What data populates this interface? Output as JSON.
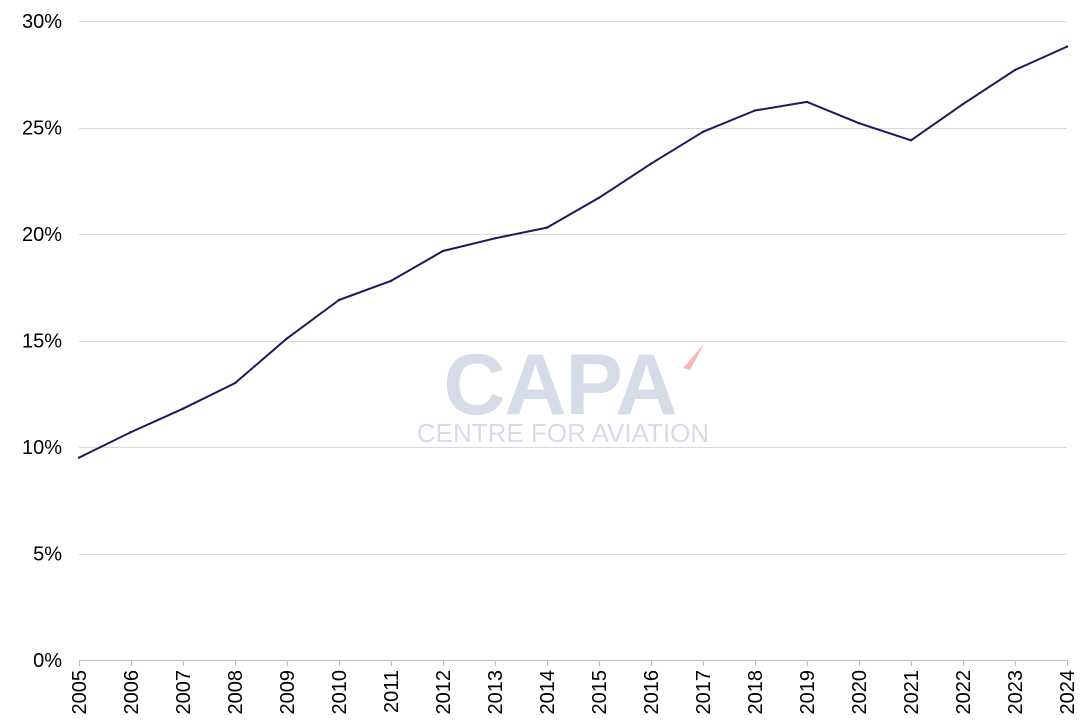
{
  "chart_data": {
    "type": "line",
    "title": "",
    "xlabel": "",
    "ylabel": "",
    "x": [
      "2005",
      "2006",
      "2007",
      "2008",
      "2009",
      "2010",
      "2011",
      "2012",
      "2013",
      "2014",
      "2015",
      "2016",
      "2017",
      "2018",
      "2019",
      "2020",
      "2021",
      "2022",
      "2023",
      "2024"
    ],
    "series": [
      {
        "values": [
          9.5,
          10.7,
          11.8,
          13.0,
          15.1,
          16.9,
          17.8,
          19.2,
          19.8,
          20.3,
          21.7,
          23.3,
          24.8,
          25.8,
          26.2,
          25.2,
          24.4,
          26.1,
          27.7,
          28.8
        ],
        "color": "#1a1a5e"
      }
    ],
    "ylim": [
      0,
      30
    ],
    "y_ticks": [
      "0%",
      "5%",
      "10%",
      "15%",
      "20%",
      "25%",
      "30%"
    ],
    "y_tick_values": [
      0,
      5,
      10,
      15,
      20,
      25,
      30
    ],
    "grid": true,
    "legend": "none"
  },
  "watermark": {
    "logo_text": "CAPA",
    "tagline": "CENTRE FOR AVIATION",
    "logo_color": "#d6dbe8",
    "accent_color": "#f4b8b8"
  }
}
